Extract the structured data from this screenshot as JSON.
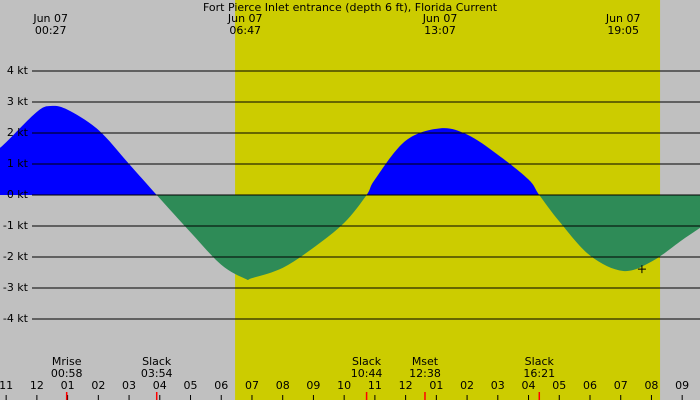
{
  "chart_data": {
    "type": "area",
    "title": "Fort Pierce Inlet entrance (depth 6 ft), Florida Current",
    "x": [
      -1.2,
      -1,
      0,
      0.45,
      1,
      2,
      3,
      3.9,
      5,
      6,
      6.78,
      7,
      8,
      9,
      10,
      10.73,
      11,
      12,
      13.12,
      14,
      15,
      16,
      16.35,
      17,
      18,
      19.08,
      20,
      21,
      21.58
    ],
    "series": [
      {
        "values": [
          1.52,
          1.7,
          2.68,
          2.87,
          2.75,
          2.1,
          1.0,
          0,
          -1.2,
          -2.25,
          -2.7,
          -2.68,
          -2.35,
          -1.7,
          -0.9,
          0,
          0.5,
          1.75,
          2.15,
          1.95,
          1.3,
          0.5,
          0,
          -0.85,
          -1.95,
          -2.45,
          -2.15,
          -1.45,
          -1.06
        ],
        "positive_color": "#0000ff",
        "negative_color": "#2e8b57"
      }
    ],
    "xlim": [
      -1.2,
      21.58
    ],
    "ylim": [
      -5,
      5
    ],
    "yticks": [
      {
        "value": 4,
        "label": "4 kt"
      },
      {
        "value": 3,
        "label": "3 kt"
      },
      {
        "value": 2,
        "label": "2 kt"
      },
      {
        "value": 1,
        "label": "1 kt"
      },
      {
        "value": 0,
        "label": "0 kt"
      },
      {
        "value": -1,
        "label": "-1 kt"
      },
      {
        "value": -2,
        "label": "-2 kt"
      },
      {
        "value": -3,
        "label": "-3 kt"
      },
      {
        "value": -4,
        "label": "-4 kt"
      }
    ],
    "xticks": [
      {
        "value": -1,
        "label": "11"
      },
      {
        "value": 0,
        "label": "12"
      },
      {
        "value": 1,
        "label": "01"
      },
      {
        "value": 2,
        "label": "02"
      },
      {
        "value": 3,
        "label": "03"
      },
      {
        "value": 4,
        "label": "04"
      },
      {
        "value": 5,
        "label": "05"
      },
      {
        "value": 6,
        "label": "06"
      },
      {
        "value": 7,
        "label": "07"
      },
      {
        "value": 8,
        "label": "08"
      },
      {
        "value": 9,
        "label": "09"
      },
      {
        "value": 10,
        "label": "10"
      },
      {
        "value": 11,
        "label": "11"
      },
      {
        "value": 12,
        "label": "12"
      },
      {
        "value": 13,
        "label": "01"
      },
      {
        "value": 14,
        "label": "02"
      },
      {
        "value": 15,
        "label": "03"
      },
      {
        "value": 16,
        "label": "04"
      },
      {
        "value": 17,
        "label": "05"
      },
      {
        "value": 18,
        "label": "06"
      },
      {
        "value": 19,
        "label": "07"
      },
      {
        "value": 20,
        "label": "08"
      },
      {
        "value": 21,
        "label": "09"
      }
    ],
    "grid": true,
    "daylight": {
      "start": 6.45,
      "end": 20.28,
      "color": "#cccc00"
    },
    "background": "#c0c0c0",
    "extremes": [
      {
        "date": "Jun 07",
        "time": "00:27",
        "x": 0.45
      },
      {
        "date": "Jun 07",
        "time": "06:47",
        "x": 6.78
      },
      {
        "date": "Jun 07",
        "time": "13:07",
        "x": 13.12
      },
      {
        "date": "Jun 07",
        "time": "19:05",
        "x": 19.08
      }
    ],
    "events": [
      {
        "label": "Mrise",
        "time": "00:58",
        "x": 0.97
      },
      {
        "label": "Slack",
        "time": "03:54",
        "x": 3.9
      },
      {
        "label": "Slack",
        "time": "10:44",
        "x": 10.73
      },
      {
        "label": "Mset",
        "time": "12:38",
        "x": 12.63
      },
      {
        "label": "Slack",
        "time": "16:21",
        "x": 16.35
      }
    ],
    "marker": {
      "x": 19.69,
      "y": -2.39
    }
  }
}
